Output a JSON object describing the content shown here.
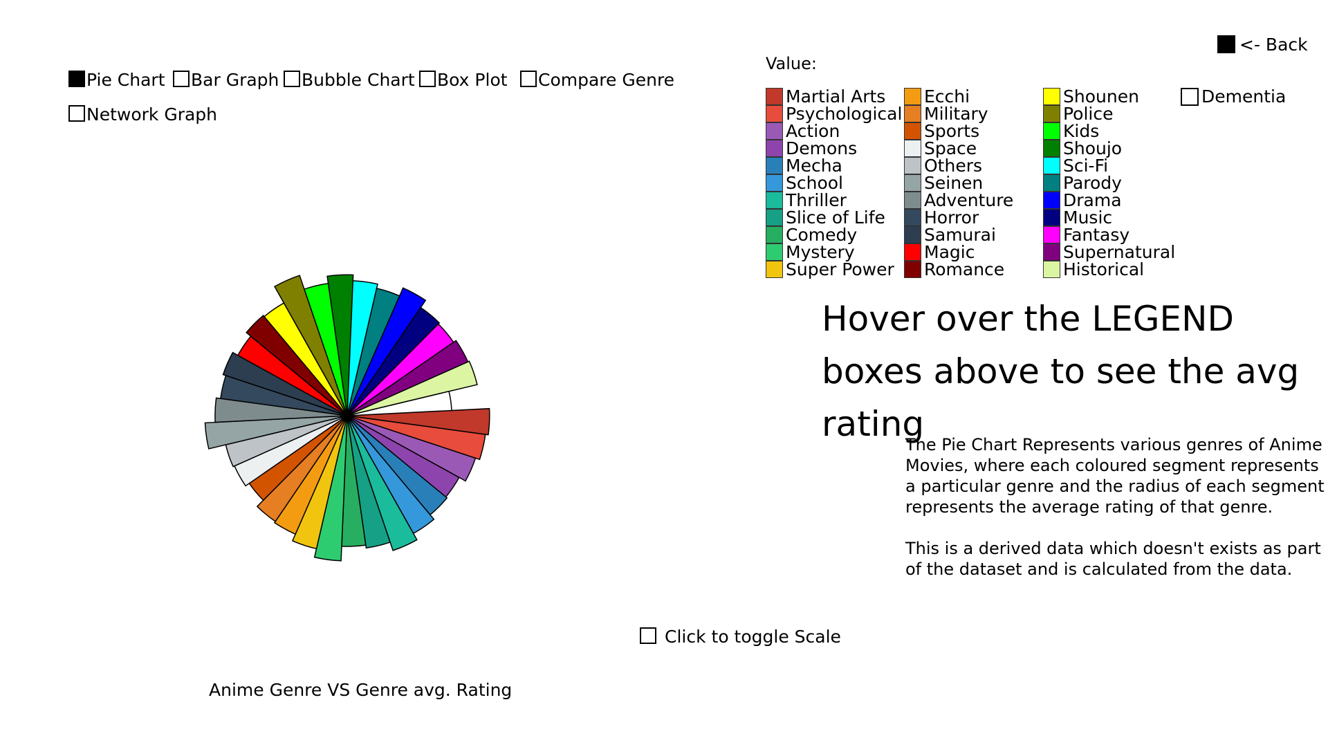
{
  "menu": {
    "items": [
      {
        "label": "Pie Chart",
        "checked": true
      },
      {
        "label": "Bar Graph",
        "checked": false
      },
      {
        "label": "Bubble Chart",
        "checked": false
      },
      {
        "label": "Box Plot",
        "checked": false
      },
      {
        "label": "Compare Genre",
        "checked": false
      },
      {
        "label": "Network Graph",
        "checked": false
      }
    ]
  },
  "back_label": "<- Back",
  "value_label": "Value:",
  "legend": [
    {
      "name": "Martial Arts",
      "color": "#c0392b"
    },
    {
      "name": "Psychological",
      "color": "#e74c3c"
    },
    {
      "name": "Action",
      "color": "#9b59b6"
    },
    {
      "name": "Demons",
      "color": "#8e44ad"
    },
    {
      "name": "Mecha",
      "color": "#2980b9"
    },
    {
      "name": "School",
      "color": "#3498db"
    },
    {
      "name": "Thriller",
      "color": "#1abc9c"
    },
    {
      "name": "Slice of Life",
      "color": "#16a085"
    },
    {
      "name": "Comedy",
      "color": "#27ae60"
    },
    {
      "name": "Mystery",
      "color": "#2ecc71"
    },
    {
      "name": "Super Power",
      "color": "#f1c40f"
    },
    {
      "name": "Ecchi",
      "color": "#f39c12"
    },
    {
      "name": "Military",
      "color": "#e67e22"
    },
    {
      "name": "Sports",
      "color": "#d35400"
    },
    {
      "name": "Space",
      "color": "#ecf0f1"
    },
    {
      "name": "Others",
      "color": "#bdc3c7"
    },
    {
      "name": "Seinen",
      "color": "#95a5a6"
    },
    {
      "name": "Adventure",
      "color": "#7f8c8d"
    },
    {
      "name": "Horror",
      "color": "#34495e"
    },
    {
      "name": "Samurai",
      "color": "#2c3e50"
    },
    {
      "name": "Magic",
      "color": "#ff0000"
    },
    {
      "name": "Romance",
      "color": "#800000"
    },
    {
      "name": "Shounen",
      "color": "#ffff00"
    },
    {
      "name": "Police",
      "color": "#808000"
    },
    {
      "name": "Kids",
      "color": "#00ff00"
    },
    {
      "name": "Shoujo",
      "color": "#008000"
    },
    {
      "name": "Sci-Fi",
      "color": "#00ffff"
    },
    {
      "name": "Parody",
      "color": "#008080"
    },
    {
      "name": "Drama",
      "color": "#0000ff"
    },
    {
      "name": "Music",
      "color": "#000080"
    },
    {
      "name": "Fantasy",
      "color": "#ff00ff"
    },
    {
      "name": "Supernatural",
      "color": "#800080"
    },
    {
      "name": "Historical",
      "color": "#dcf5a3"
    },
    {
      "name": "Dementia",
      "color": "#ffffff"
    }
  ],
  "hover_hint": "Hover over the LEGEND boxes above to see the avg rating",
  "description": {
    "p1": "The Pie Chart Represents various genres of Anime Movies, where each coloured segment represents a particular genre and the radius of each segment represents the average rating of that genre.",
    "p2": "This is a derived data which doesn't exists as part of the dataset and is calculated from the data."
  },
  "scale_toggle_label": "Click to toggle Scale",
  "chart_data": {
    "type": "pie",
    "title": "Anime Genre VS Genre avg. Rating",
    "slices": [
      {
        "genre": "Martial Arts",
        "relative_radius": 0.98
      },
      {
        "genre": "Psychological",
        "relative_radius": 0.96
      },
      {
        "genre": "Action",
        "relative_radius": 0.93
      },
      {
        "genre": "Demons",
        "relative_radius": 0.88
      },
      {
        "genre": "Mecha",
        "relative_radius": 0.89
      },
      {
        "genre": "School",
        "relative_radius": 0.93
      },
      {
        "genre": "Thriller",
        "relative_radius": 0.98
      },
      {
        "genre": "Slice of Life",
        "relative_radius": 0.92
      },
      {
        "genre": "Comedy",
        "relative_radius": 0.9
      },
      {
        "genre": "Mystery",
        "relative_radius": 1.0
      },
      {
        "genre": "Super Power",
        "relative_radius": 0.94
      },
      {
        "genre": "Ecchi",
        "relative_radius": 0.89
      },
      {
        "genre": "Military",
        "relative_radius": 0.88
      },
      {
        "genre": "Sports",
        "relative_radius": 0.82
      },
      {
        "genre": "Space",
        "relative_radius": 0.85
      },
      {
        "genre": "Others",
        "relative_radius": 0.86
      },
      {
        "genre": "Seinen",
        "relative_radius": 0.98
      },
      {
        "genre": "Adventure",
        "relative_radius": 0.91
      },
      {
        "genre": "Horror",
        "relative_radius": 0.88
      },
      {
        "genre": "Samurai",
        "relative_radius": 0.9
      },
      {
        "genre": "Magic",
        "relative_radius": 0.86
      },
      {
        "genre": "Romance",
        "relative_radius": 0.9
      },
      {
        "genre": "Shounen",
        "relative_radius": 0.89
      },
      {
        "genre": "Police",
        "relative_radius": 1.02
      },
      {
        "genre": "Kids",
        "relative_radius": 0.92
      },
      {
        "genre": "Shoujo",
        "relative_radius": 0.97
      },
      {
        "genre": "Sci-Fi",
        "relative_radius": 0.93
      },
      {
        "genre": "Parody",
        "relative_radius": 0.9
      },
      {
        "genre": "Drama",
        "relative_radius": 0.96
      },
      {
        "genre": "Music",
        "relative_radius": 0.9
      },
      {
        "genre": "Fantasy",
        "relative_radius": 0.89
      },
      {
        "genre": "Supernatural",
        "relative_radius": 0.91
      },
      {
        "genre": "Historical",
        "relative_radius": 0.92
      },
      {
        "genre": "Dementia",
        "relative_radius": 0.72
      }
    ]
  }
}
